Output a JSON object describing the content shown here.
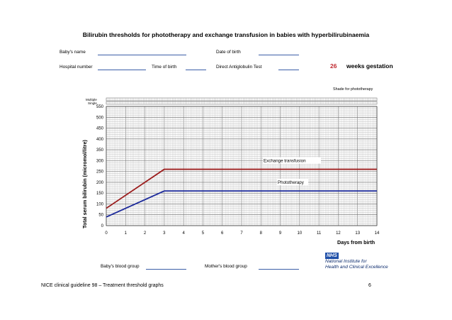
{
  "header": {
    "title": "Bilirubin thresholds for phototherapy and exchange transfusion in babies with hyperbilirubinaemia",
    "babys_name_label": "Baby's name",
    "date_of_birth_label": "Date of birth",
    "hospital_number_label": "Hospital number",
    "time_of_birth_label": "Time of birth",
    "dat_label": "Direct Antiglobulin Test",
    "gestation_value": "26",
    "gestation_label": "weeks gestation",
    "shade_note": "Shade for phototherapy",
    "multiple_label": "Multiple",
    "single_label": "Single"
  },
  "chart_data": {
    "type": "line",
    "ylabel": "Total serum bilirubin (micromol/litre)",
    "xlabel": "Days from birth",
    "xlim": [
      0,
      14
    ],
    "ylim": [
      0,
      550
    ],
    "xticks": [
      0,
      1,
      2,
      3,
      4,
      5,
      6,
      7,
      8,
      9,
      10,
      11,
      12,
      13,
      14
    ],
    "yticks": [
      0,
      50,
      100,
      150,
      200,
      250,
      300,
      350,
      400,
      450,
      500,
      550
    ],
    "grid": true,
    "series": [
      {
        "name": "Exchange transfusion",
        "color": "#9b1c1c",
        "x": [
          0,
          3,
          14
        ],
        "y": [
          80,
          260,
          260
        ]
      },
      {
        "name": "Phototherapy",
        "color": "#1c2a9b",
        "x": [
          0,
          3,
          14
        ],
        "y": [
          40,
          160,
          160
        ]
      }
    ]
  },
  "bottom": {
    "baby_blood_group_label": "Baby's blood group",
    "mother_blood_group_label": "Mother's blood group",
    "nhs": "NHS",
    "nice_line1": "National Institute for",
    "nice_line2": "Health and Clinical Excellence"
  },
  "footer": {
    "left": "NICE clinical guideline 98 – Treatment threshold graphs",
    "page": "6"
  }
}
